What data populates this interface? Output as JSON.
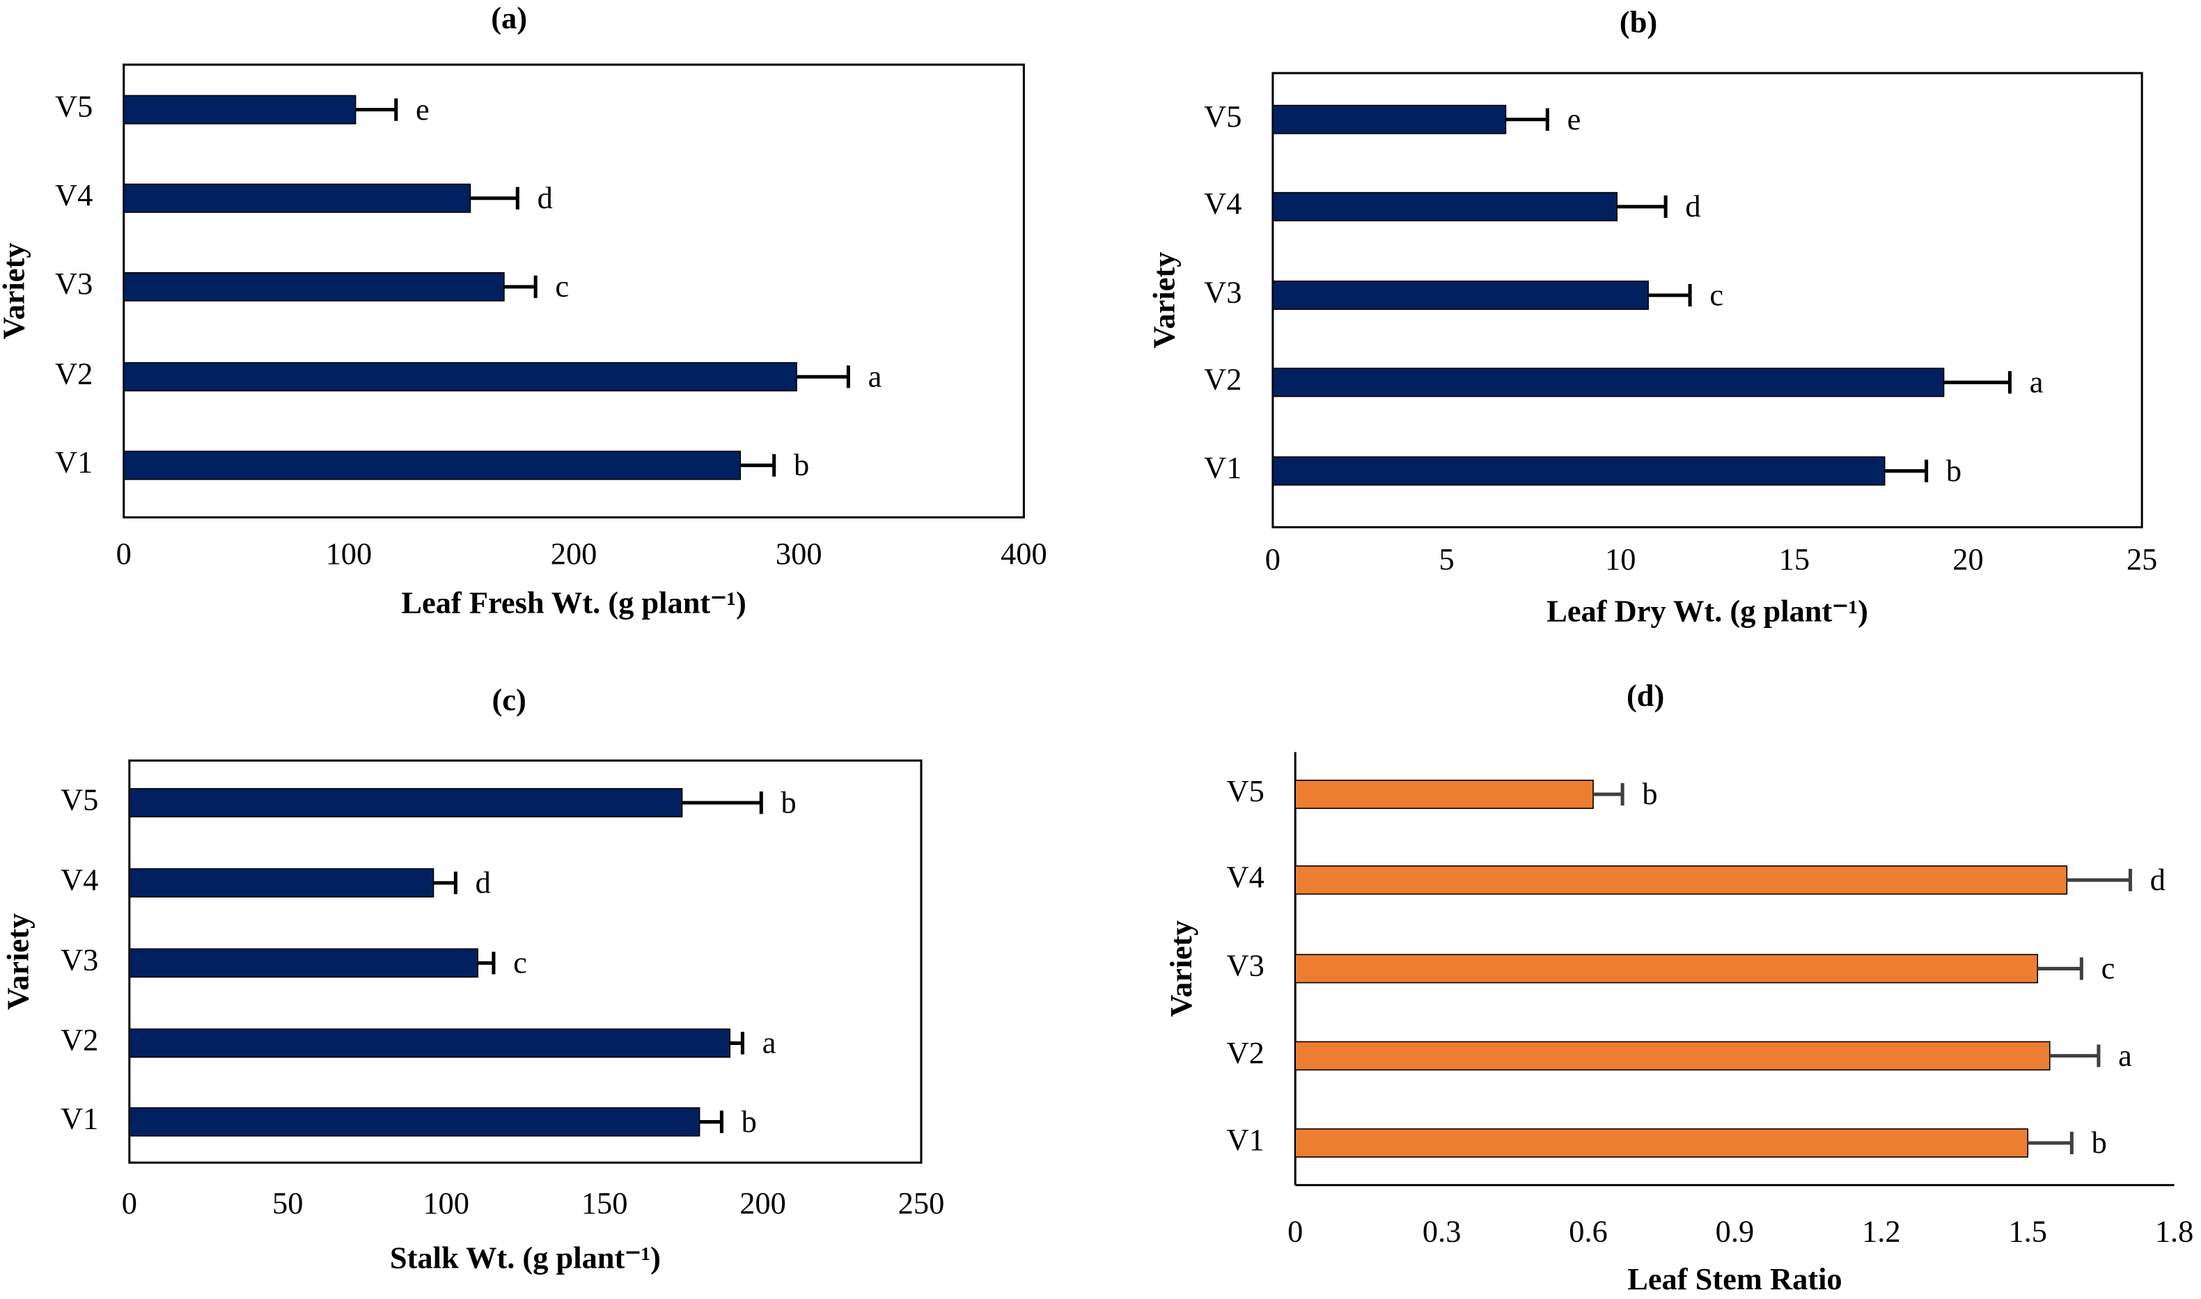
{
  "chart_data": [
    {
      "type": "hbar",
      "title": "(a)",
      "xlabel": "Leaf Fresh Wt. (g plant⁻¹)",
      "ylabel": "Variety",
      "categories": [
        "V1",
        "V2",
        "V3",
        "V4",
        "V5"
      ],
      "values": [
        274,
        299,
        169,
        154,
        103
      ],
      "errors": [
        15,
        23,
        14,
        21,
        18
      ],
      "letters": [
        "b",
        "a",
        "c",
        "d",
        "e"
      ],
      "color": "#002060",
      "error_color": "#000000",
      "xlim": [
        0,
        400
      ],
      "xticks": [
        0,
        100,
        200,
        300,
        400
      ]
    },
    {
      "type": "hbar",
      "title": "(b)",
      "xlabel": "Leaf Dry Wt. (g plant⁻¹)",
      "ylabel": "Variety",
      "categories": [
        "V1",
        "V2",
        "V3",
        "V4",
        "V5"
      ],
      "values": [
        17.6,
        19.3,
        10.8,
        9.9,
        6.7
      ],
      "errors": [
        1.2,
        1.9,
        1.2,
        1.4,
        1.2
      ],
      "letters": [
        "b",
        "a",
        "c",
        "d",
        "e"
      ],
      "color": "#002060",
      "error_color": "#000000",
      "xlim": [
        0,
        25
      ],
      "xticks": [
        0,
        5,
        10,
        15,
        20,
        25
      ]
    },
    {
      "type": "hbar",
      "title": "(c)",
      "xlabel": "Stalk Wt. (g plant⁻¹)",
      "ylabel": "Variety",
      "categories": [
        "V1",
        "V2",
        "V3",
        "V4",
        "V5"
      ],
      "values": [
        180,
        189.6,
        110,
        96,
        174.5
      ],
      "errors": [
        7,
        4,
        5,
        7,
        25
      ],
      "letters": [
        "b",
        "a",
        "c",
        "d",
        "b"
      ],
      "color": "#002060",
      "error_color": "#000000",
      "xlim": [
        0,
        250
      ],
      "xticks": [
        0,
        50,
        100,
        150,
        200,
        250
      ]
    },
    {
      "type": "hbar",
      "title": "(d)",
      "xlabel": "Leaf Stem Ratio",
      "ylabel": "Variety",
      "categories": [
        "V1",
        "V2",
        "V3",
        "V4",
        "V5"
      ],
      "values": [
        1.5,
        1.545,
        1.52,
        1.58,
        0.61
      ],
      "errors": [
        0.09,
        0.1,
        0.09,
        0.13,
        0.06
      ],
      "letters": [
        "b",
        "a",
        "c",
        "d",
        "b"
      ],
      "color": "#ed7d31",
      "error_color": "#404040",
      "xlim": [
        0,
        1.8
      ],
      "xticks": [
        0,
        0.3,
        0.6,
        0.9,
        1.2,
        1.5,
        1.8
      ]
    }
  ]
}
